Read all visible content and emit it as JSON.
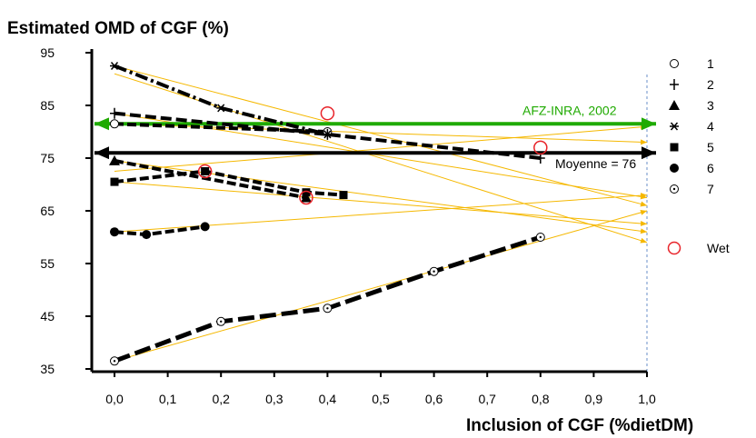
{
  "chart_data": {
    "type": "line",
    "title": "Estimated OMD of CGF (%)",
    "xlabel": "Inclusion of CGF (%dietDM)",
    "ylabel": "",
    "xlim": [
      0,
      1.0
    ],
    "ylim": [
      35,
      95
    ],
    "x_ticks": [
      "0,0",
      "0,1",
      "0,2",
      "0,3",
      "0,4",
      "0,5",
      "0,6",
      "0,7",
      "0,8",
      "0,9",
      "1,0"
    ],
    "y_ticks": [
      "35",
      "45",
      "55",
      "65",
      "75",
      "85",
      "95"
    ],
    "series": [
      {
        "name": "1",
        "marker": "circle-open",
        "x": [
          0,
          0.4
        ],
        "y": [
          81.5,
          80.0
        ]
      },
      {
        "name": "2",
        "marker": "plus",
        "x": [
          0,
          0.4,
          0.8
        ],
        "y": [
          83.5,
          79.5,
          75.0
        ]
      },
      {
        "name": "3",
        "marker": "triangle",
        "x": [
          0,
          0.36
        ],
        "y": [
          74.5,
          67.5
        ]
      },
      {
        "name": "4",
        "marker": "star",
        "x": [
          0,
          0.2,
          0.4
        ],
        "y": [
          92.5,
          84.5,
          79.5
        ]
      },
      {
        "name": "5",
        "marker": "square",
        "x": [
          0,
          0.17,
          0.36,
          0.43
        ],
        "y": [
          70.5,
          72.5,
          68.5,
          68.0
        ]
      },
      {
        "name": "6",
        "marker": "dot",
        "x": [
          0,
          0.06,
          0.17
        ],
        "y": [
          61.0,
          60.5,
          62.0
        ]
      },
      {
        "name": "7",
        "marker": "circle-dot",
        "x": [
          0,
          0.2,
          0.4,
          0.6,
          0.8
        ],
        "y": [
          36.5,
          44.0,
          46.5,
          53.5,
          60.0
        ]
      }
    ],
    "wet_points": [
      {
        "x": 0.4,
        "y": 83.5
      },
      {
        "x": 0.8,
        "y": 77.0
      },
      {
        "x": 0.17,
        "y": 72.5
      },
      {
        "x": 0.36,
        "y": 67.5
      }
    ],
    "wet_label": "Wet",
    "extrapolations": [
      {
        "x0": 0,
        "y0": 81.5,
        "y1": 78.0
      },
      {
        "x0": 0,
        "y0": 83.5,
        "y1": 67.5
      },
      {
        "x0": 0,
        "y0": 74.5,
        "y1": 61.0
      },
      {
        "x0": 0,
        "y0": 92.5,
        "y1": 66.0
      },
      {
        "x0": 0,
        "y0": 70.5,
        "y1": 62.5
      },
      {
        "x0": 0,
        "y0": 61.0,
        "y1": 68.0
      },
      {
        "x0": 0,
        "y0": 36.5,
        "y1": 65.0
      },
      {
        "x0": 0,
        "y0": 72.5,
        "y1": 81.0
      },
      {
        "x0": 0,
        "y0": 91.0,
        "y1": 59.0
      }
    ],
    "reference_lines": [
      {
        "label": "AFZ-INRA, 2002",
        "y": 81.5,
        "color": "#1faa00"
      },
      {
        "label": "Moyenne = 76",
        "y": 76.0,
        "color": "#000000"
      }
    ],
    "colors": {
      "extrapolation": "#f5b800",
      "wet": "#e8242a",
      "guide": "#6a8fc8"
    },
    "legend_position": "right"
  }
}
